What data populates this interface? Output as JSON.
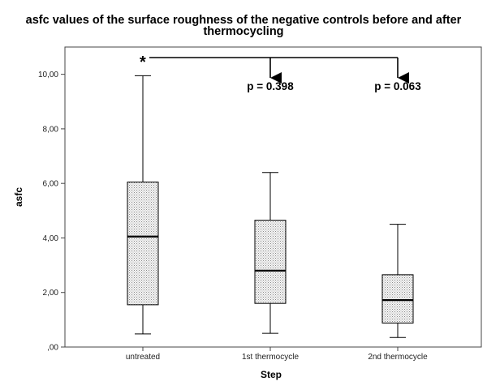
{
  "chart_data": {
    "type": "boxplot",
    "title_line1": "asfc values of the surface roughness of the negative controls before and after",
    "title_line2": "thermocycling",
    "xlabel": "Step",
    "ylabel": "asfc",
    "ylim": [
      0,
      11
    ],
    "yticks": [
      {
        "value": 0,
        "label": ",00"
      },
      {
        "value": 2,
        "label": "2,00"
      },
      {
        "value": 4,
        "label": "4,00"
      },
      {
        "value": 6,
        "label": "6,00"
      },
      {
        "value": 8,
        "label": "8,00"
      },
      {
        "value": 10,
        "label": "10,00"
      }
    ],
    "categories": [
      "untreated",
      "1st thermocycle",
      "2nd thermocycle"
    ],
    "boxes": [
      {
        "min": 0.48,
        "q1": 1.55,
        "median": 4.05,
        "q3": 6.05,
        "max": 9.95
      },
      {
        "min": 0.5,
        "q1": 1.6,
        "median": 2.8,
        "q3": 4.65,
        "max": 6.4
      },
      {
        "min": 0.35,
        "q1": 0.88,
        "median": 1.72,
        "q3": 2.65,
        "max": 4.5
      }
    ],
    "annotations": {
      "marker": "*",
      "comparisons": [
        {
          "from": "untreated",
          "to": "1st thermocycle",
          "label": "p = 0.398"
        },
        {
          "from": "untreated",
          "to": "2nd thermocycle",
          "label": "p = 0.063"
        }
      ]
    },
    "grid": false,
    "fill": "dotted-gray"
  }
}
